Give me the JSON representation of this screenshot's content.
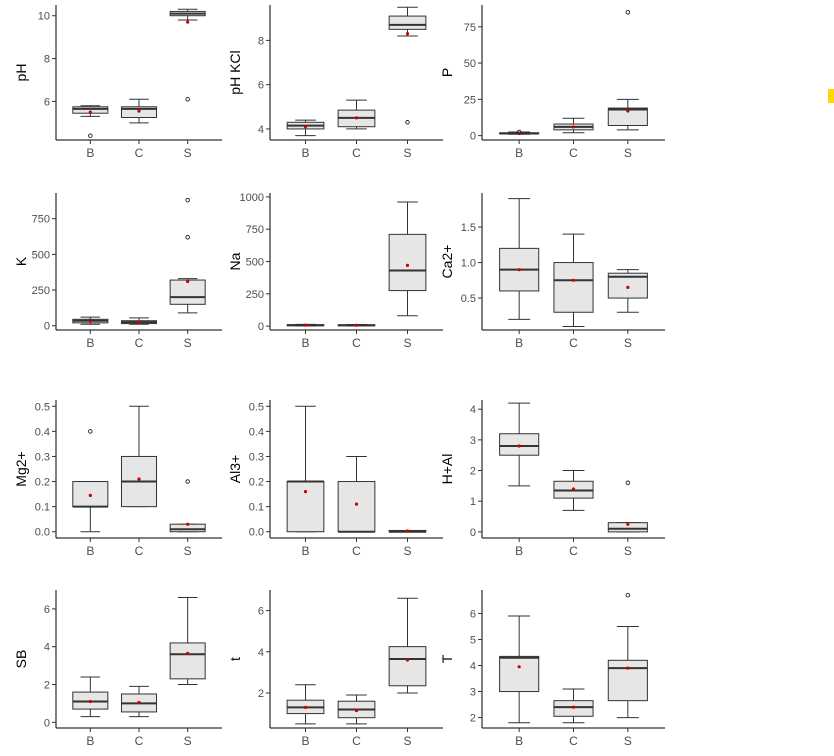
{
  "colors": {
    "box_fill": "#e6e6e6",
    "outline": "#333333",
    "mean_point": "#cc0000",
    "axis": "#000000",
    "tick_text": "#4d4d4d",
    "side_marker": "#ffd800"
  },
  "chart_data": [
    {
      "type": "box",
      "ylabel": "pH",
      "categories": [
        "B",
        "C",
        "S"
      ],
      "yticks": [
        6,
        8,
        10
      ],
      "ylim": [
        4.2,
        10.5
      ],
      "boxes": [
        {
          "min": 5.3,
          "q1": 5.45,
          "median": 5.65,
          "q3": 5.75,
          "max": 5.8,
          "mean": 5.5,
          "outliers": [
            4.4
          ]
        },
        {
          "min": 5.0,
          "q1": 5.25,
          "median": 5.65,
          "q3": 5.75,
          "max": 6.1,
          "mean": 5.55,
          "outliers": []
        },
        {
          "min": 9.8,
          "q1": 10.0,
          "median": 10.1,
          "q3": 10.2,
          "max": 10.3,
          "mean": 9.7,
          "outliers": [
            6.1
          ]
        }
      ]
    },
    {
      "type": "box",
      "ylabel": "pH KCl",
      "categories": [
        "B",
        "C",
        "S"
      ],
      "yticks": [
        4,
        6,
        8
      ],
      "ylim": [
        3.5,
        9.6
      ],
      "boxes": [
        {
          "min": 3.7,
          "q1": 4.0,
          "median": 4.15,
          "q3": 4.3,
          "max": 4.4,
          "mean": 4.1,
          "outliers": []
        },
        {
          "min": 4.0,
          "q1": 4.1,
          "median": 4.5,
          "q3": 4.85,
          "max": 5.3,
          "mean": 4.5,
          "outliers": []
        },
        {
          "min": 8.2,
          "q1": 8.5,
          "median": 8.7,
          "q3": 9.1,
          "max": 9.5,
          "mean": 8.3,
          "outliers": [
            4.3
          ]
        }
      ]
    },
    {
      "type": "box",
      "ylabel": "P",
      "categories": [
        "B",
        "C",
        "S"
      ],
      "yticks": [
        0,
        25,
        50,
        75
      ],
      "ylim": [
        -3,
        90
      ],
      "boxes": [
        {
          "min": 1,
          "q1": 1.2,
          "median": 1.5,
          "q3": 2,
          "max": 2.5,
          "mean": 1.5,
          "outliers": [
            2.5
          ]
        },
        {
          "min": 2,
          "q1": 4,
          "median": 6,
          "q3": 8,
          "max": 12,
          "mean": 6,
          "outliers": []
        },
        {
          "min": 4,
          "q1": 7,
          "median": 18,
          "q3": 19,
          "max": 25,
          "mean": 17,
          "outliers": [
            85
          ]
        }
      ]
    },
    {
      "type": "box",
      "ylabel": "K",
      "categories": [
        "B",
        "C",
        "S"
      ],
      "yticks": [
        0,
        250,
        500,
        750
      ],
      "ylim": [
        -30,
        930
      ],
      "boxes": [
        {
          "min": 10,
          "q1": 20,
          "median": 35,
          "q3": 45,
          "max": 60,
          "mean": 35,
          "outliers": []
        },
        {
          "min": 10,
          "q1": 15,
          "median": 25,
          "q3": 35,
          "max": 55,
          "mean": 28,
          "outliers": []
        },
        {
          "min": 90,
          "q1": 150,
          "median": 200,
          "q3": 320,
          "max": 330,
          "mean": 310,
          "outliers": [
            620,
            880
          ]
        }
      ]
    },
    {
      "type": "box",
      "ylabel": "Na",
      "categories": [
        "B",
        "C",
        "S"
      ],
      "yticks": [
        0,
        250,
        500,
        750,
        1000
      ],
      "ylim": [
        -30,
        1030
      ],
      "boxes": [
        {
          "min": 2,
          "q1": 5,
          "median": 8,
          "q3": 10,
          "max": 14,
          "mean": 8,
          "outliers": []
        },
        {
          "min": 2,
          "q1": 5,
          "median": 7,
          "q3": 10,
          "max": 13,
          "mean": 7,
          "outliers": []
        },
        {
          "min": 80,
          "q1": 275,
          "median": 430,
          "q3": 710,
          "max": 960,
          "mean": 470,
          "outliers": []
        }
      ]
    },
    {
      "type": "box",
      "ylabel": "Ca2+",
      "categories": [
        "B",
        "C",
        "S"
      ],
      "yticks": [
        0.5,
        1.0,
        1.5
      ],
      "ylim": [
        0.05,
        1.98
      ],
      "boxes": [
        {
          "min": 0.2,
          "q1": 0.6,
          "median": 0.9,
          "q3": 1.2,
          "max": 1.9,
          "mean": 0.9,
          "outliers": []
        },
        {
          "min": 0.1,
          "q1": 0.3,
          "median": 0.75,
          "q3": 1.0,
          "max": 1.4,
          "mean": 0.75,
          "outliers": []
        },
        {
          "min": 0.3,
          "q1": 0.5,
          "median": 0.8,
          "q3": 0.85,
          "max": 0.9,
          "mean": 0.65,
          "outliers": []
        }
      ]
    },
    {
      "type": "box",
      "ylabel": "Mg2+",
      "categories": [
        "B",
        "C",
        "S"
      ],
      "yticks": [
        0.0,
        0.1,
        0.2,
        0.3,
        0.4,
        0.5
      ],
      "ylim": [
        -0.025,
        0.525
      ],
      "boxes": [
        {
          "min": 0.0,
          "q1": 0.1,
          "median": 0.1,
          "q3": 0.2,
          "max": 0.2,
          "mean": 0.145,
          "outliers": [
            0.4
          ]
        },
        {
          "min": 0.1,
          "q1": 0.1,
          "median": 0.2,
          "q3": 0.3,
          "max": 0.5,
          "mean": 0.21,
          "outliers": []
        },
        {
          "min": 0.0,
          "q1": 0.0,
          "median": 0.01,
          "q3": 0.03,
          "max": 0.03,
          "mean": 0.03,
          "outliers": [
            0.2
          ]
        }
      ]
    },
    {
      "type": "box",
      "ylabel": "Al3+",
      "categories": [
        "B",
        "C",
        "S"
      ],
      "yticks": [
        0.0,
        0.1,
        0.2,
        0.3,
        0.4,
        0.5
      ],
      "ylim": [
        -0.025,
        0.525
      ],
      "boxes": [
        {
          "min": 0.0,
          "q1": 0.0,
          "median": 0.2,
          "q3": 0.2,
          "max": 0.5,
          "mean": 0.16,
          "outliers": []
        },
        {
          "min": 0.0,
          "q1": 0.0,
          "median": 0.0,
          "q3": 0.2,
          "max": 0.3,
          "mean": 0.11,
          "outliers": []
        },
        {
          "min": 0.0,
          "q1": 0.0,
          "median": 0.0,
          "q3": 0.005,
          "max": 0.005,
          "mean": 0.003,
          "outliers": []
        }
      ]
    },
    {
      "type": "box",
      "ylabel": "H+Al",
      "categories": [
        "B",
        "C",
        "S"
      ],
      "yticks": [
        0,
        1,
        2,
        3,
        4
      ],
      "ylim": [
        -0.2,
        4.3
      ],
      "boxes": [
        {
          "min": 1.5,
          "q1": 2.5,
          "median": 2.8,
          "q3": 3.2,
          "max": 4.2,
          "mean": 2.8,
          "outliers": []
        },
        {
          "min": 0.7,
          "q1": 1.1,
          "median": 1.35,
          "q3": 1.65,
          "max": 2.0,
          "mean": 1.4,
          "outliers": []
        },
        {
          "min": 0.0,
          "q1": 0.0,
          "median": 0.1,
          "q3": 0.3,
          "max": 0.3,
          "mean": 0.25,
          "outliers": [
            1.6
          ]
        }
      ]
    },
    {
      "type": "box",
      "ylabel": "SB",
      "categories": [
        "B",
        "C",
        "S"
      ],
      "yticks": [
        0,
        2,
        4,
        6
      ],
      "ylim": [
        -0.3,
        7.0
      ],
      "boxes": [
        {
          "min": 0.3,
          "q1": 0.7,
          "median": 1.1,
          "q3": 1.6,
          "max": 2.4,
          "mean": 1.1,
          "outliers": []
        },
        {
          "min": 0.3,
          "q1": 0.55,
          "median": 1.0,
          "q3": 1.5,
          "max": 1.9,
          "mean": 1.05,
          "outliers": []
        },
        {
          "min": 2.0,
          "q1": 2.3,
          "median": 3.6,
          "q3": 4.2,
          "max": 6.6,
          "mean": 3.65,
          "outliers": []
        }
      ]
    },
    {
      "type": "box",
      "ylabel": "t",
      "categories": [
        "B",
        "C",
        "S"
      ],
      "yticks": [
        2,
        4,
        6
      ],
      "ylim": [
        0.3,
        7.0
      ],
      "boxes": [
        {
          "min": 0.5,
          "q1": 1.0,
          "median": 1.3,
          "q3": 1.65,
          "max": 2.4,
          "mean": 1.3,
          "outliers": []
        },
        {
          "min": 0.5,
          "q1": 0.8,
          "median": 1.2,
          "q3": 1.6,
          "max": 1.9,
          "mean": 1.15,
          "outliers": []
        },
        {
          "min": 2.0,
          "q1": 2.35,
          "median": 3.65,
          "q3": 4.25,
          "max": 6.6,
          "mean": 3.6,
          "outliers": []
        }
      ]
    },
    {
      "type": "box",
      "ylabel": "T",
      "categories": [
        "B",
        "C",
        "S"
      ],
      "yticks": [
        2,
        3,
        4,
        5,
        6
      ],
      "ylim": [
        1.6,
        6.9
      ],
      "boxes": [
        {
          "min": 1.8,
          "q1": 3.0,
          "median": 4.3,
          "q3": 4.35,
          "max": 5.9,
          "mean": 3.95,
          "outliers": []
        },
        {
          "min": 1.8,
          "q1": 2.05,
          "median": 2.4,
          "q3": 2.65,
          "max": 3.1,
          "mean": 2.4,
          "outliers": []
        },
        {
          "min": 2.0,
          "q1": 2.65,
          "median": 3.9,
          "q3": 4.2,
          "max": 5.5,
          "mean": 3.9,
          "outliers": [
            6.7
          ]
        }
      ]
    }
  ]
}
